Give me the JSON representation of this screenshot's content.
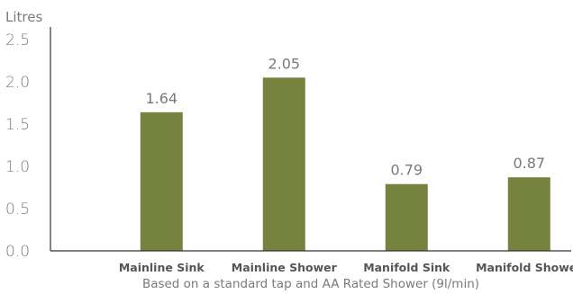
{
  "chart_data": {
    "type": "bar",
    "unit_label": "Litres",
    "categories": [
      "Mainline Sink",
      "Mainline Shower",
      "Manifold Sink",
      "Manifold Shower"
    ],
    "values": [
      1.64,
      2.05,
      0.79,
      0.87
    ],
    "value_labels": [
      "1.64",
      "2.05",
      "0.79",
      "0.87"
    ],
    "yticks": [
      "0.0",
      "0.5",
      "1.0",
      "1.5",
      "2.0",
      "2.5"
    ],
    "ylim": [
      0,
      2.5
    ],
    "footnote": "Based on a standard tap and AA Rated Shower (9l/min)",
    "bar_color": "#76833f",
    "grid": false
  }
}
